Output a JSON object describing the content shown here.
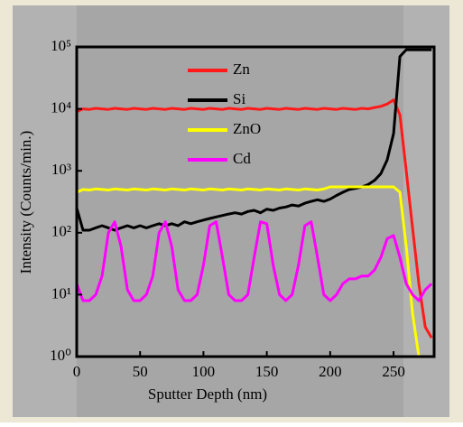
{
  "chart_data": {
    "type": "line",
    "xlabel": "Sputter Depth (nm)",
    "ylabel": "Intensity (Counts/min.)",
    "log_y": true,
    "legend": "upper center",
    "xlim": [
      0,
      282
    ],
    "xticks": [
      0,
      50,
      100,
      150,
      200,
      250
    ],
    "ylim": [
      1,
      100000
    ],
    "yticks": [
      {
        "value": 1,
        "label": "10⁰"
      },
      {
        "value": 10,
        "label": "10¹"
      },
      {
        "value": 100,
        "label": "10²"
      },
      {
        "value": 1000,
        "label": "10³"
      },
      {
        "value": 10000,
        "label": "10⁴"
      },
      {
        "value": 100000,
        "label": "10⁵"
      }
    ],
    "x": [
      0,
      5,
      10,
      15,
      20,
      25,
      30,
      35,
      40,
      45,
      50,
      55,
      60,
      65,
      70,
      75,
      80,
      85,
      90,
      95,
      100,
      105,
      110,
      115,
      120,
      125,
      130,
      135,
      140,
      145,
      150,
      155,
      160,
      165,
      170,
      175,
      180,
      185,
      190,
      195,
      200,
      205,
      210,
      215,
      220,
      225,
      230,
      235,
      240,
      245,
      250,
      255,
      260,
      265,
      270,
      275,
      280
    ],
    "series": [
      {
        "name": "Zn",
        "color": "#ff1a1a",
        "values": [
          9000,
          10000,
          9800,
          10200,
          10000,
          9800,
          10200,
          10000,
          9800,
          10200,
          10000,
          9800,
          10200,
          10000,
          9800,
          10200,
          10000,
          9800,
          10200,
          10000,
          9800,
          10200,
          10000,
          9800,
          10200,
          10000,
          9800,
          10200,
          10000,
          9800,
          10200,
          10000,
          9800,
          10200,
          10000,
          9800,
          10200,
          10000,
          9800,
          10200,
          10000,
          9800,
          10200,
          10000,
          9800,
          10200,
          10000,
          10500,
          11000,
          12000,
          14000,
          8000,
          1000,
          120,
          15,
          3,
          2
        ]
      },
      {
        "name": "Si",
        "color": "#000000",
        "values": [
          250,
          110,
          110,
          120,
          130,
          120,
          110,
          120,
          130,
          120,
          130,
          120,
          130,
          140,
          130,
          140,
          130,
          150,
          140,
          150,
          160,
          170,
          180,
          190,
          200,
          210,
          200,
          220,
          230,
          210,
          240,
          230,
          250,
          260,
          280,
          270,
          300,
          320,
          340,
          320,
          350,
          400,
          450,
          500,
          520,
          550,
          600,
          700,
          900,
          1500,
          4000,
          70000,
          90000,
          90000,
          90000,
          90000,
          90000
        ]
      },
      {
        "name": "ZnO",
        "color": "#ffff00",
        "values": [
          450,
          500,
          490,
          510,
          500,
          490,
          510,
          500,
          490,
          510,
          500,
          490,
          510,
          500,
          490,
          510,
          500,
          490,
          510,
          500,
          490,
          510,
          500,
          490,
          510,
          500,
          490,
          510,
          500,
          490,
          510,
          500,
          490,
          510,
          500,
          490,
          510,
          500,
          490,
          510,
          550,
          550,
          550,
          550,
          550,
          550,
          550,
          550,
          550,
          550,
          550,
          450,
          60,
          5,
          1,
          1,
          1
        ]
      },
      {
        "name": "Cd",
        "color": "#ff00ff",
        "values": [
          15,
          8,
          8,
          10,
          20,
          100,
          150,
          60,
          12,
          8,
          8,
          10,
          20,
          100,
          150,
          60,
          12,
          8,
          8,
          10,
          30,
          130,
          150,
          40,
          10,
          8,
          8,
          10,
          40,
          150,
          140,
          30,
          10,
          8,
          10,
          30,
          130,
          150,
          40,
          10,
          8,
          10,
          15,
          18,
          18,
          20,
          20,
          25,
          40,
          80,
          90,
          40,
          15,
          10,
          8,
          12,
          15
        ]
      }
    ]
  }
}
